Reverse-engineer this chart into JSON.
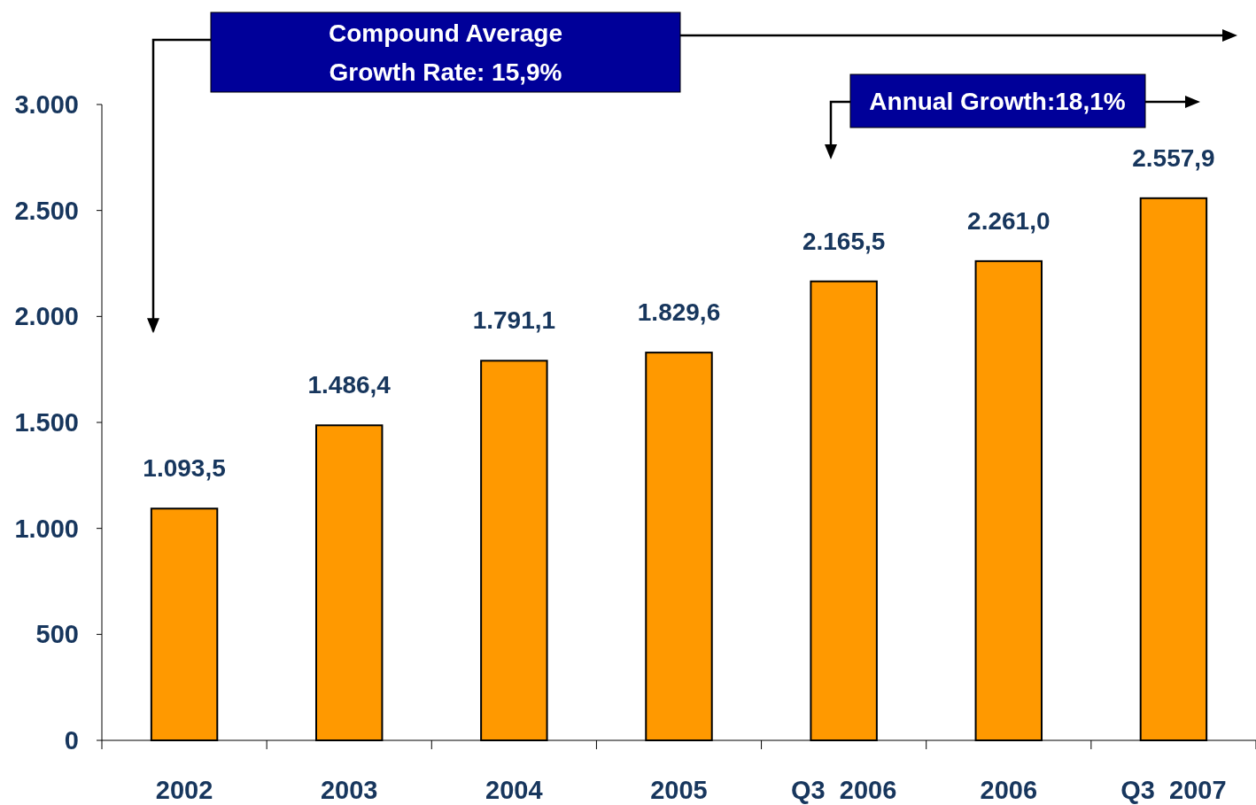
{
  "chart_data": {
    "type": "bar",
    "categories": [
      "2002",
      "2003",
      "2004",
      "2005",
      "Q3  2006",
      "2006",
      "Q3  2007"
    ],
    "values": [
      1093.5,
      1486.4,
      1791.1,
      1829.6,
      2165.5,
      2261.0,
      2557.9
    ],
    "value_labels": [
      "1.093,5",
      "1.486,4",
      "1.791,1",
      "1.829,6",
      "2.165,5",
      "2.261,0",
      "2.557,9"
    ],
    "color": "#ff9900",
    "ylim": [
      0,
      3000
    ],
    "yticks": [
      0,
      500,
      {
        "value": 1000,
        "label": "1.000"
      },
      {
        "value": 1500,
        "label": "1.500"
      },
      {
        "value": 2000,
        "label": "2.000"
      },
      {
        "value": 2500,
        "label": "2.500"
      },
      {
        "value": 3000,
        "label": "3.000"
      }
    ],
    "grid": false,
    "annotations": [
      "Compound Average\nGrowth Rate: 15,9%",
      "Annual Growth:18,1%"
    ]
  }
}
